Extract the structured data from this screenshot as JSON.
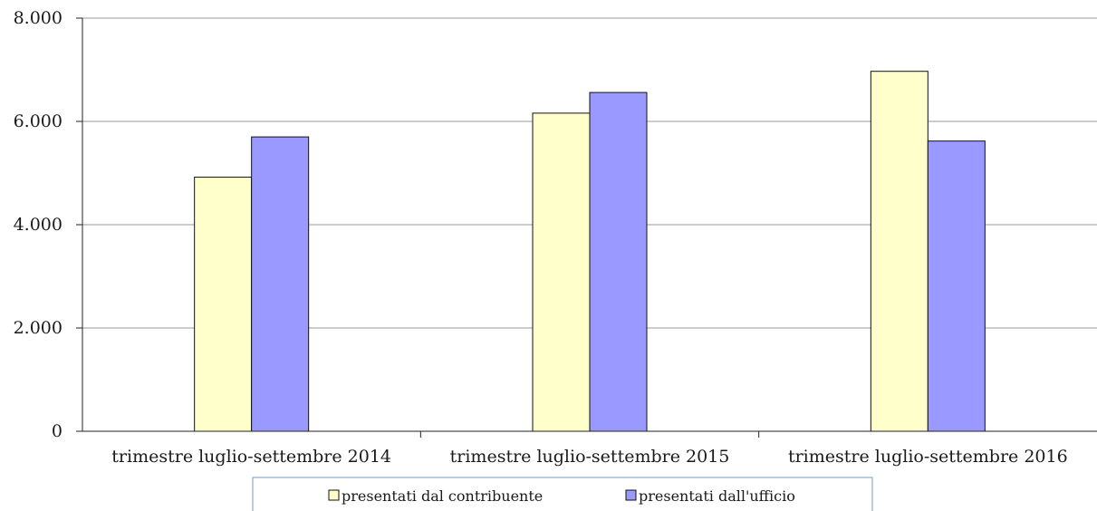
{
  "chart_data": {
    "type": "bar",
    "categories": [
      "trimestre luglio-settembre 2014",
      "trimestre luglio-settembre 2015",
      "trimestre luglio-settembre 2016"
    ],
    "series": [
      {
        "name": "presentati dal contribuente",
        "color": "#FFFFCC",
        "values": [
          4920,
          6160,
          6970
        ]
      },
      {
        "name": "presentati dall'ufficio",
        "color": "#9999FF",
        "values": [
          5700,
          6560,
          5620
        ]
      }
    ],
    "ylim": [
      0,
      8000
    ],
    "yticks": [
      0,
      2000,
      4000,
      6000,
      8000
    ],
    "ytick_labels": [
      "0",
      "2.000",
      "4.000",
      "6.000",
      "8.000"
    ],
    "grid": true,
    "legend_position": "bottom-center"
  }
}
